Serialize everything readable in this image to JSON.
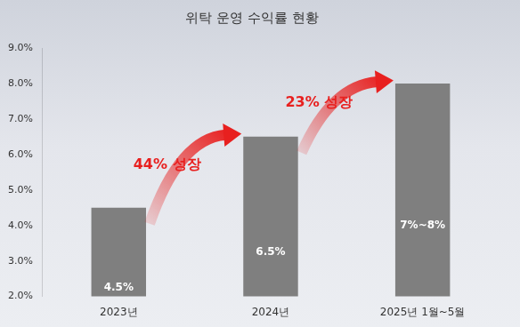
{
  "chart_data": {
    "type": "bar",
    "title": "위탁 운영 수익률 현황",
    "categories": [
      "2023년",
      "2024년",
      "2025년 1월~5월"
    ],
    "values": [
      4.5,
      6.5,
      8
    ],
    "value_labels": [
      "4.5%",
      "6.5%",
      "7%~8%"
    ],
    "color": "#7f7f7f",
    "ylim": [
      2,
      9
    ],
    "yticks": [
      {
        "value": 2,
        "label": "2.0%"
      },
      {
        "value": 3,
        "label": "3.0%"
      },
      {
        "value": 4,
        "label": "4.0%"
      },
      {
        "value": 5,
        "label": "5.0%"
      },
      {
        "value": 6,
        "label": "6.0%"
      },
      {
        "value": 7,
        "label": "7.0%"
      },
      {
        "value": 8,
        "label": "8.0%"
      },
      {
        "value": 9,
        "label": "9.0%"
      }
    ],
    "grid": false,
    "data_labels": true,
    "annotations": [
      {
        "text": "44% 성장",
        "from": "2023년",
        "to": "2024년"
      },
      {
        "text": "23% 성장",
        "from": "2024년",
        "to": "2025년 1월~5월"
      }
    ]
  }
}
